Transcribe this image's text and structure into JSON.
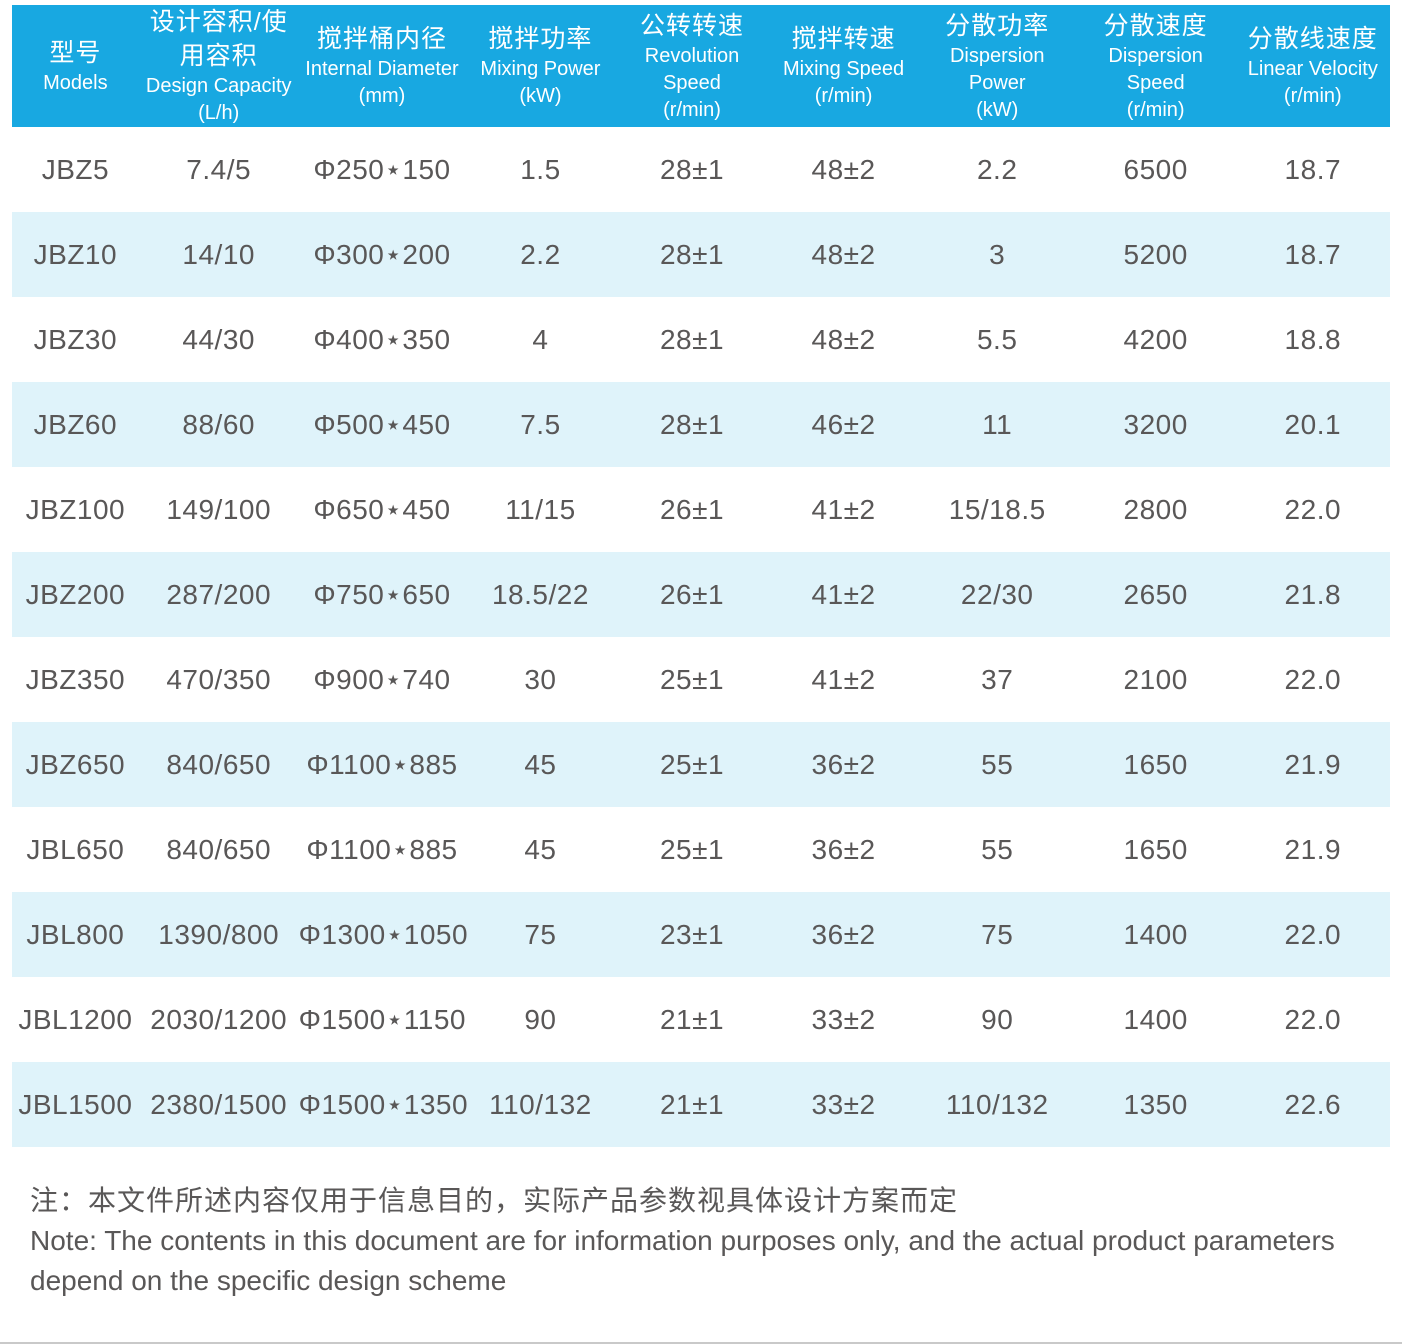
{
  "page": {
    "accent_color": "#18a8e1",
    "alt_row_color": "#dff3fa",
    "text_color": "#595757",
    "header_text_color": "#ffffff"
  },
  "table": {
    "columns": [
      {
        "cn": "型号",
        "en": "Models",
        "unit": ""
      },
      {
        "cn": "设计容积/使用容积",
        "en": "Design Capacity",
        "unit": "(L/h)"
      },
      {
        "cn": "搅拌桶内径",
        "en": "Internal Diameter",
        "unit": "(mm)"
      },
      {
        "cn": "搅拌功率",
        "en": "Mixing Power",
        "unit": "(kW)"
      },
      {
        "cn": "公转转速",
        "en": "Revolution Speed",
        "unit": "(r/min)"
      },
      {
        "cn": "搅拌转速",
        "en": "Mixing Speed",
        "unit": "(r/min)"
      },
      {
        "cn": "分散功率",
        "en": "Dispersion Power",
        "unit": "(kW)"
      },
      {
        "cn": "分散速度",
        "en": "Dispersion Speed",
        "unit": "(r/min)"
      },
      {
        "cn": "分散线速度",
        "en": "Linear Velocity",
        "unit": "(r/min)"
      }
    ],
    "rows": [
      [
        "JBZ5",
        "7.4/5",
        "Φ250⋆150",
        "1.5",
        "28±1",
        "48±2",
        "2.2",
        "6500",
        "18.7"
      ],
      [
        "JBZ10",
        "14/10",
        "Φ300⋆200",
        "2.2",
        "28±1",
        "48±2",
        "3",
        "5200",
        "18.7"
      ],
      [
        "JBZ30",
        "44/30",
        "Φ400⋆350",
        "4",
        "28±1",
        "48±2",
        "5.5",
        "4200",
        "18.8"
      ],
      [
        "JBZ60",
        "88/60",
        "Φ500⋆450",
        "7.5",
        "28±1",
        "46±2",
        "11",
        "3200",
        "20.1"
      ],
      [
        "JBZ100",
        "149/100",
        "Φ650⋆450",
        "11/15",
        "26±1",
        "41±2",
        "15/18.5",
        "2800",
        "22.0"
      ],
      [
        "JBZ200",
        "287/200",
        "Φ750⋆650",
        "18.5/22",
        "26±1",
        "41±2",
        "22/30",
        "2650",
        "21.8"
      ],
      [
        "JBZ350",
        "470/350",
        "Φ900⋆740",
        "30",
        "25±1",
        "41±2",
        "37",
        "2100",
        "22.0"
      ],
      [
        "JBZ650",
        "840/650",
        "Φ1100⋆885",
        "45",
        "25±1",
        "36±2",
        "55",
        "1650",
        "21.9"
      ],
      [
        "JBL650",
        "840/650",
        "Φ1100⋆885",
        "45",
        "25±1",
        "36±2",
        "55",
        "1650",
        "21.9"
      ],
      [
        "JBL800",
        "1390/800",
        "Φ1300⋆1050",
        "75",
        "23±1",
        "36±2",
        "75",
        "1400",
        "22.0"
      ],
      [
        "JBL1200",
        "2030/1200",
        "Φ1500⋆1150",
        "90",
        "21±1",
        "33±2",
        "90",
        "1400",
        "22.0"
      ],
      [
        "JBL1500",
        "2380/1500",
        "Φ1500⋆1350",
        "110/132",
        "21±1",
        "33±2",
        "110/132",
        "1350",
        "22.6"
      ]
    ]
  },
  "note": {
    "cn": "注：本文件所述内容仅用于信息目的，实际产品参数视具体设计方案而定",
    "en": "Note: The contents in this document are for information purposes only, and the actual product parameters depend on the specific design scheme"
  }
}
